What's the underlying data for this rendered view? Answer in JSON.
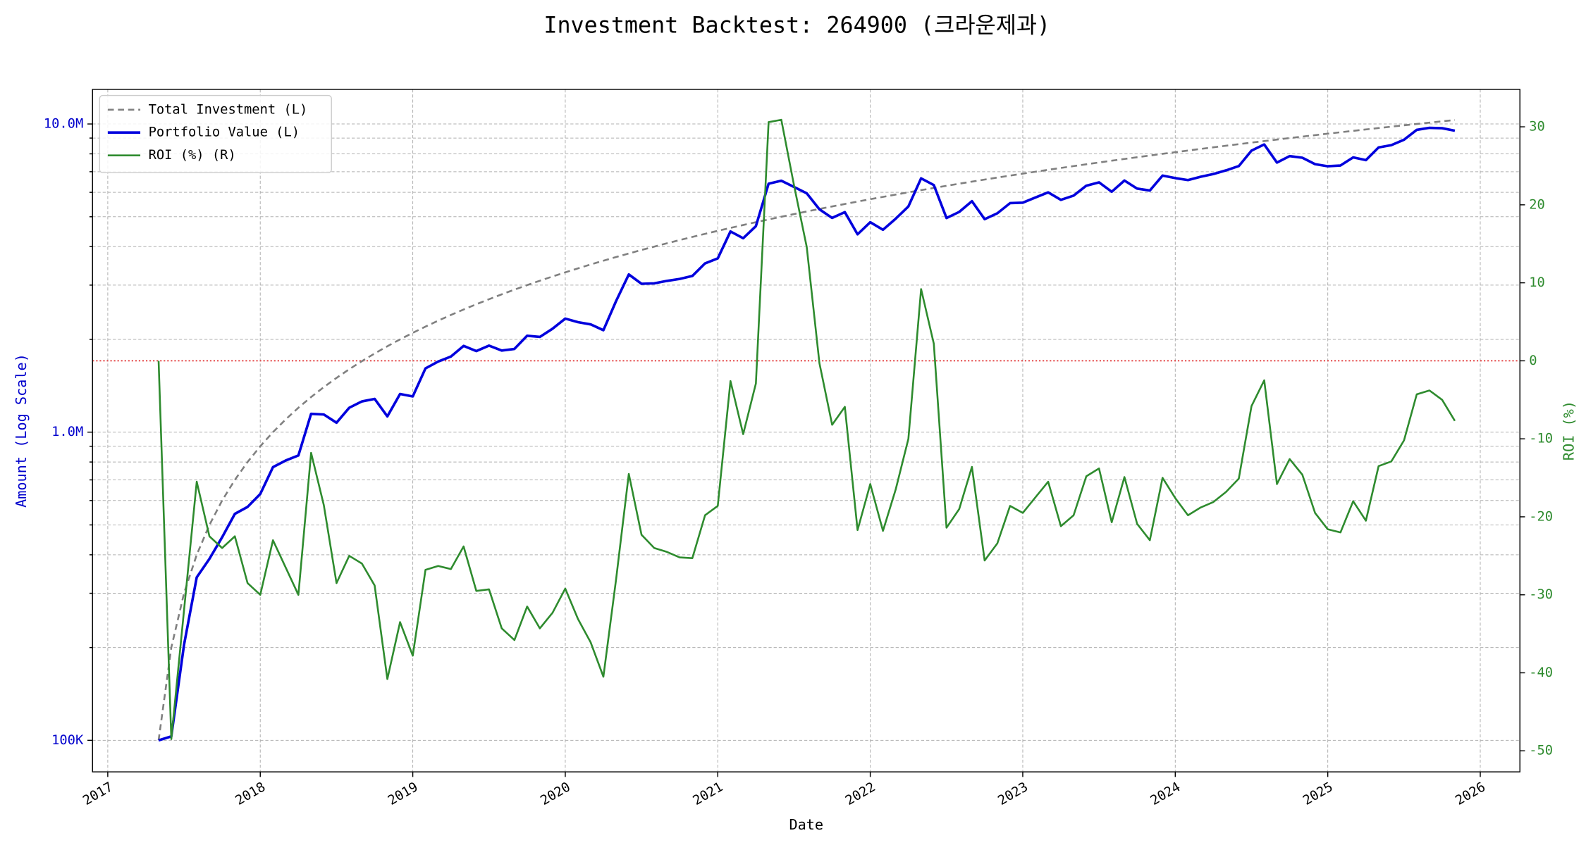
{
  "chart_data": {
    "type": "line",
    "title": "Investment Backtest: 264900 (크라운제과)",
    "xlabel": "Date",
    "ylabel": "Amount (Log Scale)",
    "y2label": "ROI (%)",
    "ylog": true,
    "grid": true,
    "legend": "upper left",
    "ylabel_color": "#0000cc",
    "y2label_color": "#2e8b2e",
    "xlim": [
      2016.9,
      2026.26
    ],
    "xticks": [
      2017,
      2018,
      2019,
      2020,
      2021,
      2022,
      2023,
      2024,
      2025,
      2026
    ],
    "ylim": [
      79000,
      12950000
    ],
    "yticks": [
      {
        "value": 100000,
        "label": "100K"
      },
      {
        "value": 1000000,
        "label": "1.0M"
      },
      {
        "value": 10000000,
        "label": "10.0M"
      }
    ],
    "yminorticks": [
      200000,
      300000,
      400000,
      500000,
      600000,
      700000,
      800000,
      900000,
      2000000,
      3000000,
      4000000,
      5000000,
      6000000,
      7000000,
      8000000,
      9000000
    ],
    "y2lim": [
      -52.7,
      34.8
    ],
    "y2ticks": [
      -50,
      -40,
      -30,
      -20,
      -10,
      0,
      10,
      20,
      30
    ],
    "reference_line": {
      "axis": "y2",
      "value": 0,
      "color": "#e03030"
    },
    "x": [
      "2017-05",
      "2017-06",
      "2017-07",
      "2017-08",
      "2017-09",
      "2017-10",
      "2017-11",
      "2017-12",
      "2018-01",
      "2018-02",
      "2018-03",
      "2018-04",
      "2018-05",
      "2018-06",
      "2018-07",
      "2018-08",
      "2018-09",
      "2018-10",
      "2018-11",
      "2018-12",
      "2019-01",
      "2019-02",
      "2019-03",
      "2019-04",
      "2019-05",
      "2019-06",
      "2019-07",
      "2019-08",
      "2019-09",
      "2019-10",
      "2019-11",
      "2019-12",
      "2020-01",
      "2020-02",
      "2020-03",
      "2020-04",
      "2020-05",
      "2020-06",
      "2020-07",
      "2020-08",
      "2020-09",
      "2020-10",
      "2020-11",
      "2020-12",
      "2021-01",
      "2021-02",
      "2021-03",
      "2021-04",
      "2021-05",
      "2021-06",
      "2021-07",
      "2021-08",
      "2021-09",
      "2021-10",
      "2021-11",
      "2021-12",
      "2022-01",
      "2022-02",
      "2022-03",
      "2022-04",
      "2022-05",
      "2022-06",
      "2022-07",
      "2022-08",
      "2022-09",
      "2022-10",
      "2022-11",
      "2022-12",
      "2023-01",
      "2023-02",
      "2023-03",
      "2023-04",
      "2023-05",
      "2023-06",
      "2023-07",
      "2023-08",
      "2023-09",
      "2023-10",
      "2023-11",
      "2023-12",
      "2024-01",
      "2024-02",
      "2024-03",
      "2024-04",
      "2024-05",
      "2024-06",
      "2024-07",
      "2024-08",
      "2024-09",
      "2024-10",
      "2024-11",
      "2024-12",
      "2025-01",
      "2025-02",
      "2025-03",
      "2025-04",
      "2025-05",
      "2025-06",
      "2025-07",
      "2025-08",
      "2025-09",
      "2025-10",
      "2025-11"
    ],
    "series": [
      {
        "name": "Total Investment (L)",
        "color": "#808080",
        "style": "dashed",
        "axis": "y",
        "values": [
          100000,
          200000,
          300000,
          400000,
          500000,
          600000,
          700000,
          800000,
          900000,
          1000000,
          1100000,
          1200000,
          1300000,
          1400000,
          1500000,
          1600000,
          1700000,
          1800000,
          1900000,
          2000000,
          2100000,
          2200000,
          2300000,
          2400000,
          2500000,
          2600000,
          2700000,
          2800000,
          2900000,
          3000000,
          3100000,
          3200000,
          3300000,
          3400000,
          3500000,
          3600000,
          3700000,
          3800000,
          3900000,
          4000000,
          4100000,
          4200000,
          4300000,
          4400000,
          4500000,
          4600000,
          4700000,
          4800000,
          4900000,
          5000000,
          5100000,
          5200000,
          5300000,
          5400000,
          5500000,
          5600000,
          5700000,
          5800000,
          5900000,
          6000000,
          6100000,
          6200000,
          6300000,
          6400000,
          6500000,
          6600000,
          6700000,
          6800000,
          6900000,
          7000000,
          7100000,
          7200000,
          7300000,
          7400000,
          7500000,
          7600000,
          7700000,
          7800000,
          7900000,
          8000000,
          8100000,
          8200000,
          8300000,
          8400000,
          8500000,
          8600000,
          8700000,
          8800000,
          8900000,
          9000000,
          9100000,
          9200000,
          9300000,
          9400000,
          9500000,
          9600000,
          9700000,
          9800000,
          9900000,
          10000000,
          10100000,
          10200000,
          10300000
        ]
      },
      {
        "name": "Portfolio Value (L)",
        "color": "#0000dd",
        "style": "solid",
        "width": 2.5,
        "axis": "y",
        "values": [
          100000,
          103000,
          204000,
          338000,
          388000,
          456000,
          543000,
          572000,
          630000,
          770000,
          809000,
          840000,
          1147000,
          1141000,
          1073000,
          1200000,
          1258000,
          1282000,
          1125000,
          1330000,
          1306000,
          1610000,
          1695000,
          1759000,
          1905000,
          1833000,
          1909000,
          1840000,
          1862000,
          2055000,
          2037000,
          2166000,
          2336000,
          2275000,
          2237000,
          2142000,
          2664000,
          3249000,
          3030000,
          3040000,
          3096000,
          3142000,
          3212000,
          3529000,
          3663000,
          4480000,
          4258000,
          4661000,
          6399000,
          6545000,
          6248000,
          5959000,
          5284000,
          4957000,
          5176000,
          4385000,
          4799000,
          4536000,
          4927000,
          5400000,
          6661000,
          6336000,
          4952000,
          5184000,
          5616000,
          4910000,
          5132000,
          5535000,
          5555000,
          5775000,
          6000000,
          5674000,
          5855000,
          6305000,
          6465000,
          6027000,
          6553000,
          6170000,
          6083000,
          6800000,
          6674000,
          6576000,
          6740000,
          6880000,
          7072000,
          7301000,
          8195000,
          8580000,
          7494000,
          7866000,
          7771000,
          7406000,
          7291000,
          7332000,
          7790000,
          7632000,
          8391000,
          8536000,
          8890000,
          9570000,
          9716000,
          9690000,
          9507000
        ]
      },
      {
        "name": "ROI (%) (R)",
        "color": "#2e8b2e",
        "style": "solid",
        "width": 1.8,
        "axis": "y2",
        "values": [
          0,
          -48.5,
          -32,
          -15.5,
          -22.5,
          -24,
          -22.5,
          -28.5,
          -30,
          -23,
          -26.5,
          -30,
          -11.8,
          -18.5,
          -28.5,
          -25,
          -26,
          -28.8,
          -40.8,
          -33.5,
          -37.8,
          -26.8,
          -26.3,
          -26.7,
          -23.8,
          -29.5,
          -29.3,
          -34.3,
          -35.8,
          -31.5,
          -34.3,
          -32.3,
          -29.2,
          -33.1,
          -36.1,
          -40.5,
          -28,
          -14.5,
          -22.3,
          -24,
          -24.5,
          -25.2,
          -25.3,
          -19.8,
          -18.6,
          -2.6,
          -9.4,
          -2.9,
          30.6,
          30.9,
          22.5,
          14.6,
          -0.3,
          -8.2,
          -5.9,
          -21.7,
          -15.8,
          -21.8,
          -16.5,
          -10,
          9.2,
          2.2,
          -21.4,
          -19,
          -13.6,
          -25.6,
          -23.4,
          -18.6,
          -19.5,
          -17.5,
          -15.5,
          -21.2,
          -19.8,
          -14.8,
          -13.8,
          -20.7,
          -14.9,
          -20.9,
          -23,
          -15,
          -17.6,
          -19.8,
          -18.8,
          -18.1,
          -16.8,
          -15.1,
          -5.8,
          -2.5,
          -15.8,
          -12.6,
          -14.6,
          -19.5,
          -21.6,
          -22,
          -18,
          -20.5,
          -13.5,
          -12.9,
          -10.2,
          -4.3,
          -3.8,
          -5,
          -7.7
        ]
      }
    ]
  }
}
